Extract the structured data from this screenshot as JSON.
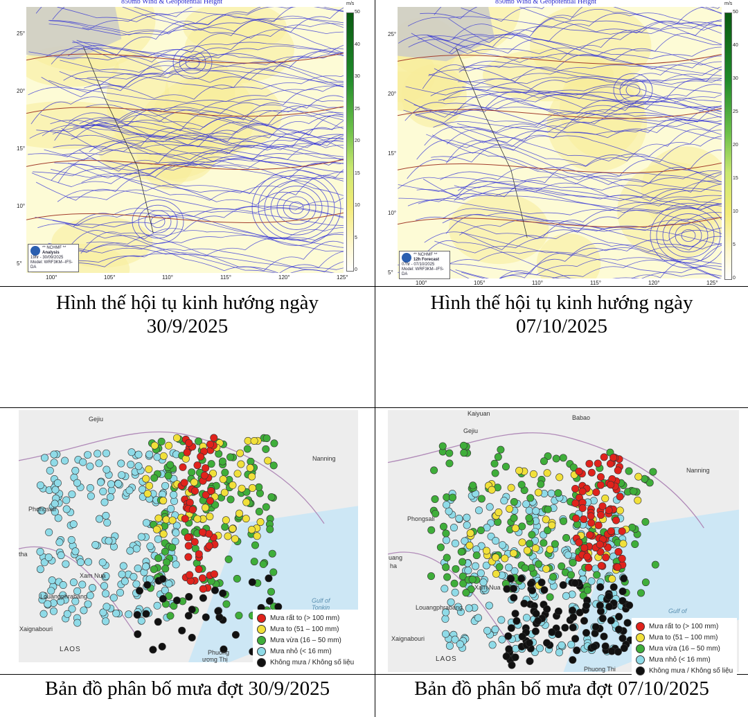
{
  "panels": {
    "top_left": {
      "title": "850mb Wind & Geopotential Height",
      "unit": "m/s",
      "colorbar": [
        "50",
        "40",
        "30",
        "25",
        "20",
        "15",
        "10",
        "5",
        "0"
      ],
      "lat_ticks": [
        "25°",
        "20°",
        "15°",
        "10°",
        "5°"
      ],
      "lon_ticks": [
        "100°",
        "105°",
        "110°",
        "115°",
        "120°",
        "125°"
      ],
      "badge": {
        "org": "** NCHMF **",
        "kind": "Analysis",
        "time": "19hr - 30/09/2025",
        "model": "Model: WRF3KM--IFS-DA"
      },
      "caption_line1": "Hình thế hội tụ kinh hướng ngày",
      "caption_line2": "30/9/2025"
    },
    "top_right": {
      "title": "850mb Wind & Geopotential Height",
      "unit": "m/s",
      "colorbar": [
        "50",
        "40",
        "30",
        "25",
        "20",
        "15",
        "10",
        "5",
        "0"
      ],
      "lat_ticks": [
        "25°",
        "20°",
        "15°",
        "10°",
        "5°"
      ],
      "lon_ticks": [
        "100°",
        "105°",
        "110°",
        "115°",
        "120°",
        "125°"
      ],
      "badge": {
        "org": "** NCHMF **",
        "kind": "12h Forecast",
        "time": "07hr - 07/10/2025",
        "model": "Model: WRF3KM--IFS-DA"
      },
      "caption_line1": "Hình thế hội tụ kinh hướng ngày",
      "caption_line2": "07/10/2025"
    },
    "bottom_left": {
      "places": {
        "gejiu": "Gejiu",
        "nanning": "Nanning",
        "phongsali": "Phongsali",
        "xam_nua": "Xam Nua",
        "louangphrabang": "Louangphrabang",
        "xaignabouri": "Xaignabouri",
        "laos": "LAOS",
        "gulf": "Gulf of Tonkin",
        "phuong": "Phuong",
        "thi": "Phuong Thi",
        "tha": "tha",
        "ong_thi": "ương Thị"
      },
      "caption": "Bản đồ phân bố mưa đợt 30/9/2025"
    },
    "bottom_right": {
      "places": {
        "kaiyuan": "Kaiyuan",
        "babao": "Babao",
        "gejiu": "Gejiu",
        "nanning": "Nanning",
        "phongsali": "Phongsali",
        "xam_nua": "Xam Nua",
        "louangphrabang": "Louangphrabang",
        "xaignabouri": "Xaignabouri",
        "laos": "LAOS",
        "gulf": "Gulf of",
        "thi": "Phuong Thi",
        "uang": "uang",
        "ha": "ha"
      },
      "caption": "Bản đồ phân bố mưa đợt 07/10/2025"
    }
  },
  "legend": [
    {
      "label": "Mưa rất to (> 100 mm)",
      "color": "#e0231c"
    },
    {
      "label": "Mưa to (51 – 100 mm)",
      "color": "#f1e03a"
    },
    {
      "label": "Mưa vừa (16 – 50 mm)",
      "color": "#3fae3a"
    },
    {
      "label": "Mưa nhỏ (< 16 mm)",
      "color": "#8fdbe8"
    },
    {
      "label": "Không mưa / Không số liệu",
      "color": "#111111"
    }
  ]
}
